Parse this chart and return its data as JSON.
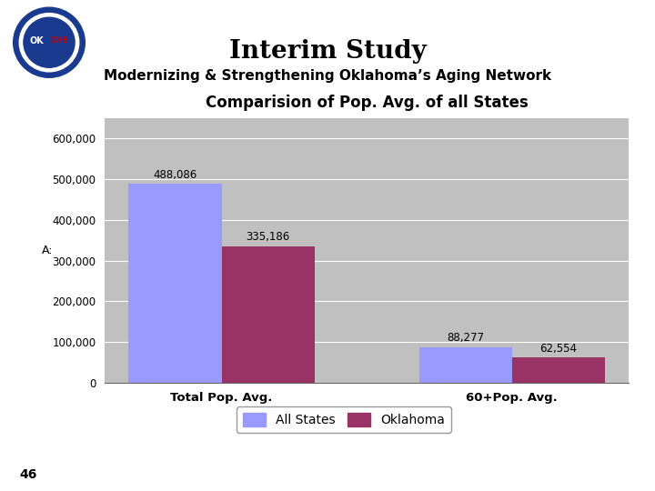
{
  "title": "Interim Study",
  "subtitle": "Modernizing & Strengthening Oklahoma’s Aging Network",
  "chart_title": "Comparision of Pop. Avg. of all States",
  "categories": [
    "Total Pop. Avg.",
    "60+Pop. Avg."
  ],
  "all_states": [
    488086,
    88277
  ],
  "oklahoma": [
    335186,
    62554
  ],
  "all_states_label": "All States",
  "oklahoma_label": "Oklahoma",
  "all_states_color": "#9999FF",
  "oklahoma_color": "#993366",
  "ylabel": "A:",
  "ylim": [
    0,
    650000
  ],
  "yticks": [
    0,
    100000,
    200000,
    300000,
    400000,
    500000,
    600000
  ],
  "ytick_labels": [
    "0",
    "100,000",
    "200,000",
    "300,000",
    "400,000",
    "500,000",
    "600,000"
  ],
  "chart_bg_color": "#C0C0C0",
  "outer_bg_color": "#FFFFFF",
  "page_number": "46",
  "bar_width": 0.32,
  "header_line_color": "#AAAAAA",
  "border_color": "#999999"
}
